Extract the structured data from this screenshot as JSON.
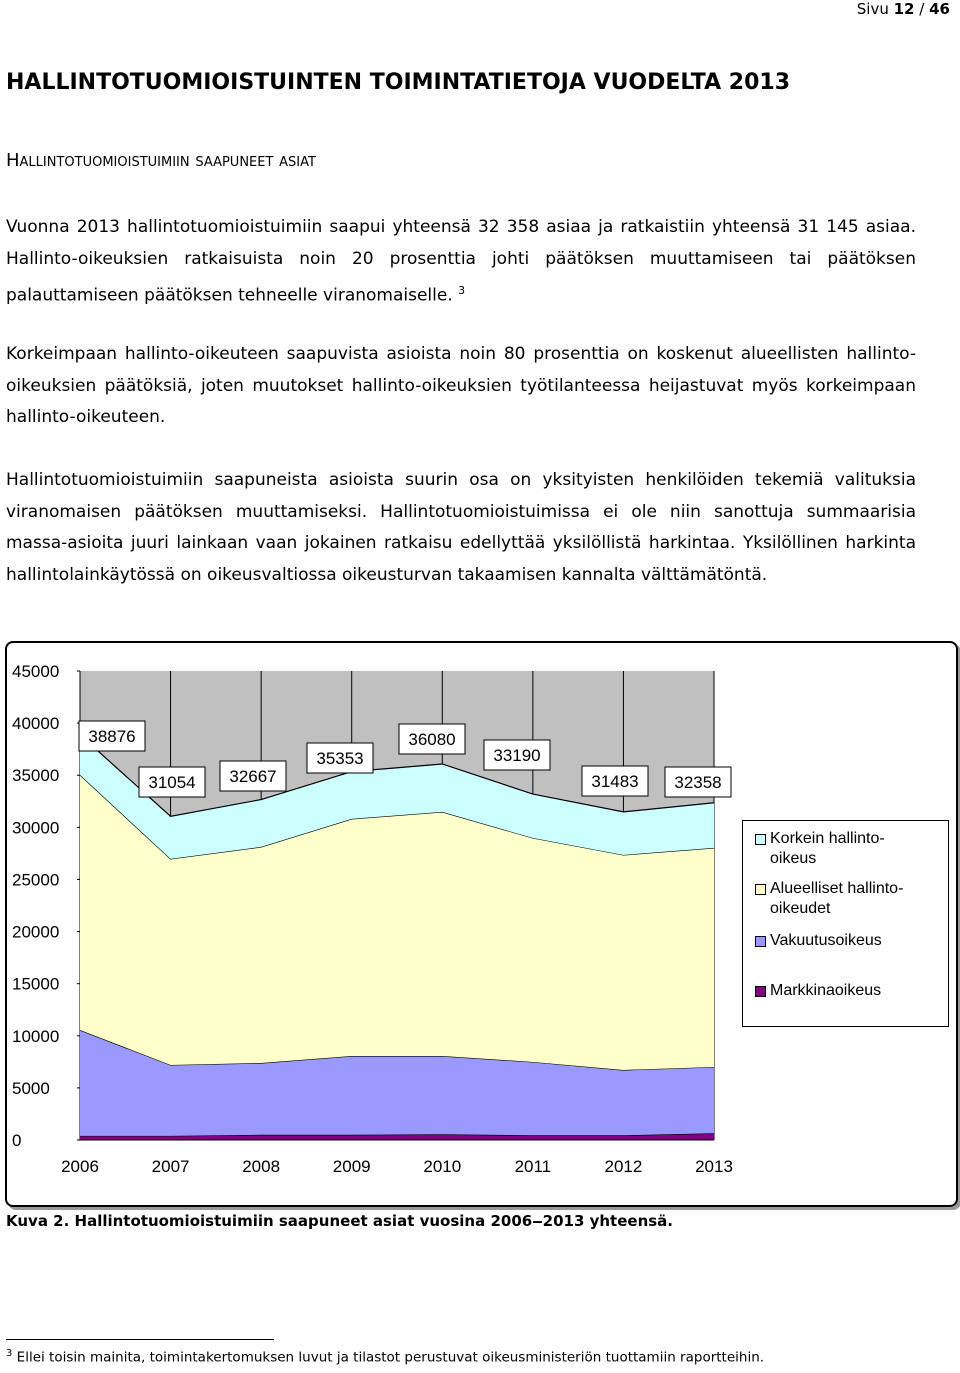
{
  "header": {
    "page_label": "Sivu",
    "page_current": "12",
    "page_sep": "/",
    "page_total": "46"
  },
  "title": "HALLINTOTUOMIOISTUINTEN TOIMINTATIETOJA VUODELTA 2013",
  "subtitle": "Hallintotuomioistuimiin saapuneet asiat",
  "paragraphs": [
    "Vuonna 2013 hallintotuomioistuimiin saapui yhteensä 32 358 asiaa ja ratkaistiin yhteensä 31 145 asiaa. Hallinto-oikeuksien ratkaisuista noin 20 prosenttia johti päätöksen muuttamiseen tai päätöksen palauttamiseen päätöksen tehneelle viranomaiselle.",
    "Korkeimpaan hallinto-oikeuteen saapuvista asioista noin 80 prosenttia on koskenut alueellisten hallinto-oikeuksien päätöksiä, joten muutokset hallinto-oikeuksien työtilanteessa heijastuvat myös korkeimpaan hallinto-oikeuteen.",
    "Hallintotuomioistuimiin saapuneista asioista suurin osa on yksityisten henkilöiden tekemiä valituksia viranomaisen päätöksen muuttamiseksi. Hallintotuomioistuimissa ei ole niin sanottuja summaarisia massa-asioita juuri lainkaan vaan jokainen ratkaisu edellyttää yksilöllistä harkintaa. Yksilöllinen harkinta hallintolainkäytössä on oikeusvaltiossa oikeusturvan takaamisen kannalta välttämätöntä."
  ],
  "footnote_ref": "3",
  "chart_data": {
    "type": "stacked-area",
    "categories": [
      "2006",
      "2007",
      "2008",
      "2009",
      "2010",
      "2011",
      "2012",
      "2013"
    ],
    "series": [
      {
        "name": "Markkinaoikeus",
        "color": "#800080",
        "values": [
          400,
          400,
          500,
          500,
          550,
          450,
          450,
          650
        ]
      },
      {
        "name": "Vakuutusoikeus",
        "color": "#9999ff",
        "values": [
          10150,
          6800,
          6890,
          7560,
          7510,
          7040,
          6270,
          6360
        ]
      },
      {
        "name": "Alueelliset hallinto-oikeudet",
        "color": "#ffffcc",
        "values": [
          24480,
          19770,
          20730,
          22750,
          23420,
          21490,
          20630,
          21020
        ]
      },
      {
        "name": "Korkein hallinto-oikeus",
        "color": "#ccffff",
        "values": [
          3846,
          4084,
          4547,
          4543,
          4600,
          4210,
          4133,
          4328
        ]
      }
    ],
    "totals": [
      38876,
      31054,
      32667,
      35353,
      36080,
      33190,
      31483,
      32358
    ],
    "ylim": [
      0,
      45000
    ],
    "yticks": [
      0,
      5000,
      10000,
      15000,
      20000,
      25000,
      30000,
      35000,
      40000,
      45000
    ],
    "grid": "vertical",
    "plot_background": "#c0c0c0",
    "legend": "right"
  },
  "caption": "Kuva 2. Hallintotuomioistuimiin saapuneet asiat vuosina 2006‒2013 yhteensä.",
  "footnote": {
    "number": "3",
    "text": "Ellei toisin mainita, toimintakertomuksen luvut ja tilastot perustuvat oikeusministeriön tuottamiin raportteihin."
  }
}
